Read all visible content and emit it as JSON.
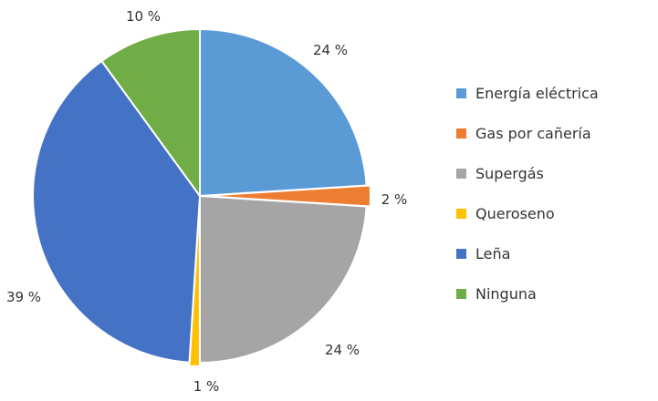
{
  "chart_data": {
    "type": "pie",
    "title": "",
    "legend_position": "right",
    "slices": [
      {
        "name": "Energía eléctrica",
        "value": 24,
        "label": "24 %",
        "color": "#5B9BD5"
      },
      {
        "name": "Gas por cañería",
        "value": 2,
        "label": "2 %",
        "color": "#ED7D31"
      },
      {
        "name": "Supergás",
        "value": 24,
        "label": "24 %",
        "color": "#A5A5A5"
      },
      {
        "name": "Queroseno",
        "value": 1,
        "label": "1 %",
        "color": "#FFC000"
      },
      {
        "name": "Leña",
        "value": 39,
        "label": "39 %",
        "color": "#4472C4"
      },
      {
        "name": "Ninguna",
        "value": 10,
        "label": "10 %",
        "color": "#70AD47"
      }
    ]
  }
}
